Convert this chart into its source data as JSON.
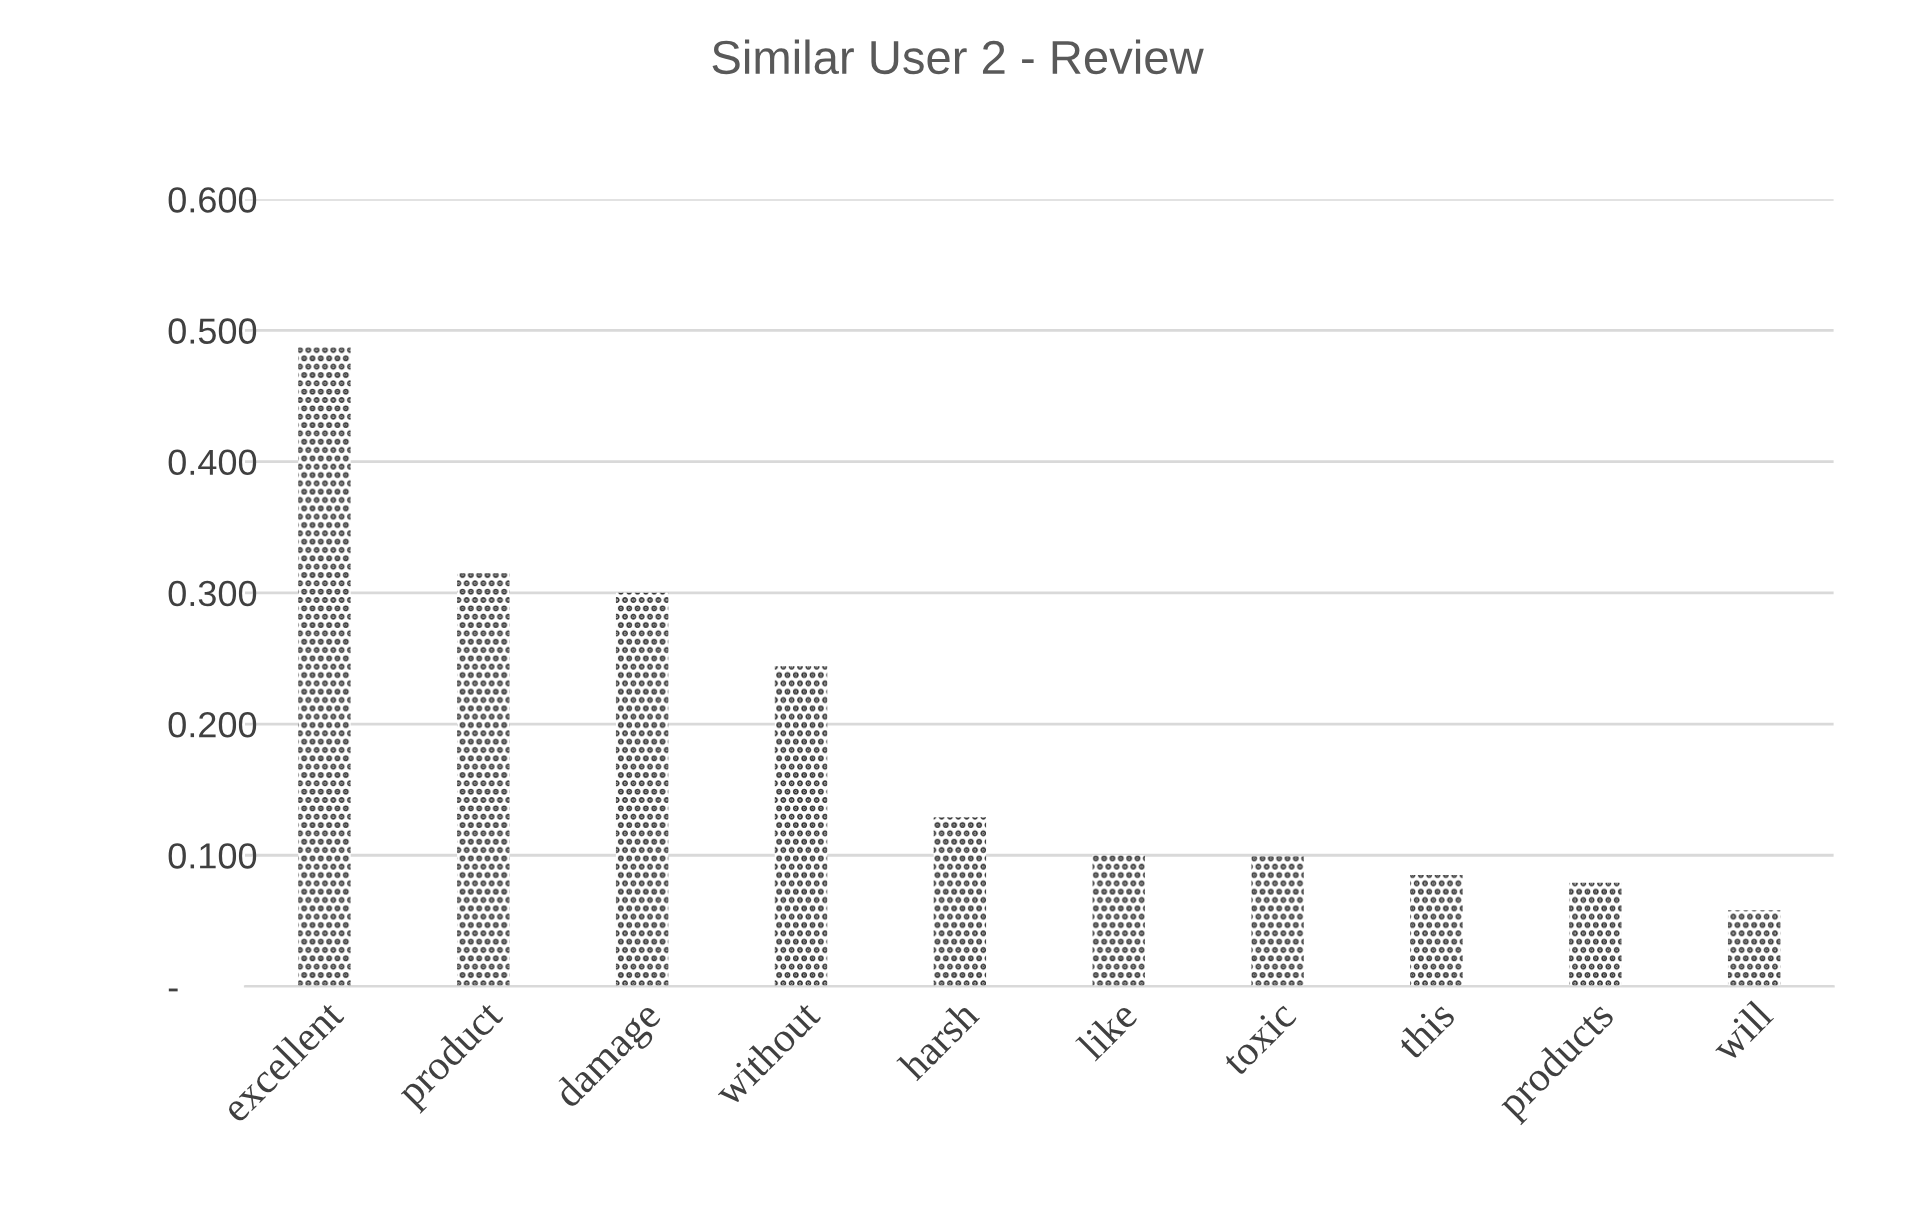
{
  "chart_data": {
    "type": "bar",
    "title": "Similar User 2 - Review",
    "categories": [
      "excellent",
      "product",
      "damage",
      "without",
      "harsh",
      "like",
      "toxic",
      "this",
      "products",
      "will"
    ],
    "values": [
      0.487,
      0.315,
      0.3,
      0.244,
      0.129,
      0.1,
      0.099,
      0.085,
      0.079,
      0.058
    ],
    "color": "#333333",
    "ylim": [
      0,
      0.6
    ],
    "yticks": [
      {
        "value": 0,
        "label": "-"
      },
      {
        "value": 0.1,
        "label": "0.100"
      },
      {
        "value": 0.2,
        "label": "0.200"
      },
      {
        "value": 0.3,
        "label": "0.300"
      },
      {
        "value": 0.4,
        "label": "0.400"
      },
      {
        "value": 0.5,
        "label": "0.500"
      },
      {
        "value": 0.6,
        "label": "0.600"
      }
    ],
    "grid": "y",
    "legend": false
  }
}
